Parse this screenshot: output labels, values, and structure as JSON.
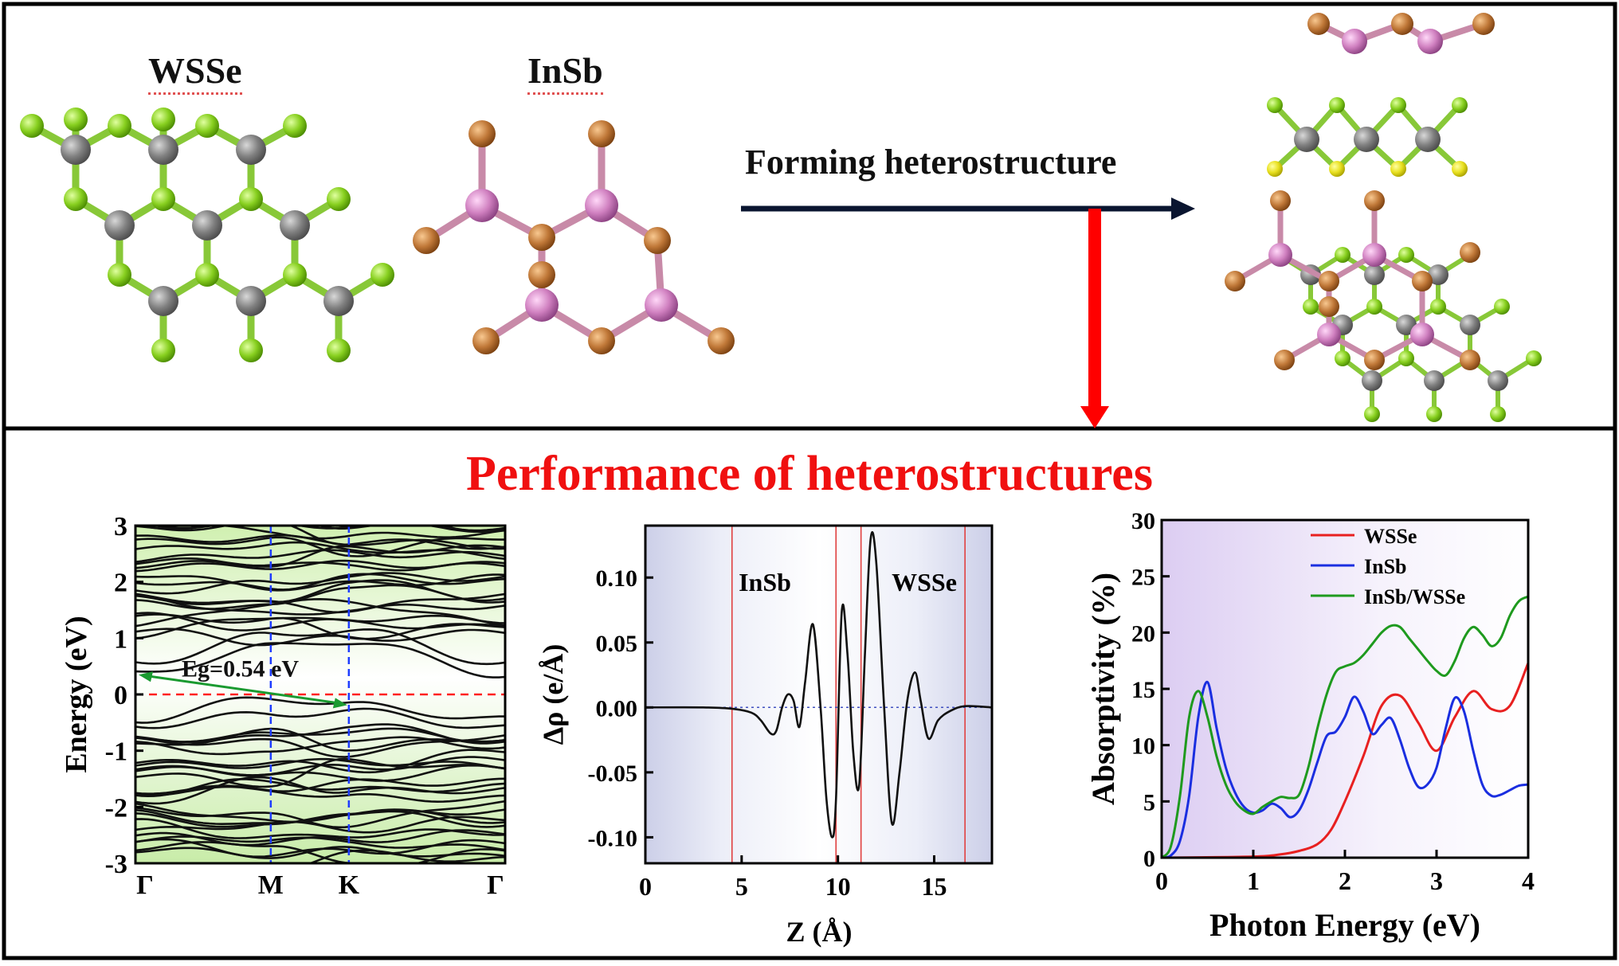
{
  "top_panel": {
    "wsse_label": "WSSe",
    "insb_label": "InSb",
    "arrow_label": "Forming heterostructure"
  },
  "bottom_panel": {
    "title": "Performance of heterostructures"
  },
  "colors": {
    "W": "#808080",
    "S": "#e8e020",
    "Se": "#88d020",
    "In": "#d080c0",
    "Sb": "#c07838",
    "bond_WSSe": "#88c838",
    "bond_InSb": "#c88aa8",
    "arrow_black": "#0a1530",
    "arrow_red": "#ff0000"
  },
  "band_chart": {
    "type": "line",
    "ylabel": "Energy (eV)",
    "ylim": [
      -3,
      3
    ],
    "yticks": [
      "-3",
      "-2",
      "-1",
      "0",
      "1",
      "2",
      "3"
    ],
    "kpoints": [
      "Γ",
      "M",
      "K",
      "Γ"
    ],
    "kpoint_positions": [
      0,
      1,
      1.577,
      2.732
    ],
    "fermi_level": 0,
    "gap_label": "Eg=0.54 eV",
    "cbm": {
      "k": 0,
      "e": 0.35
    },
    "vbm": {
      "k": 1.577,
      "e": -0.19
    }
  },
  "charge_chart": {
    "type": "line",
    "xlabel": "Z (Å)",
    "ylabel": "Δρ (e/Å)",
    "xlim": [
      0,
      18
    ],
    "ylim": [
      -0.12,
      0.14
    ],
    "xticks": [
      "0",
      "5",
      "10",
      "15"
    ],
    "yticks": [
      "-0.10",
      "-0.05",
      "0.00",
      "0.05",
      "0.10"
    ],
    "region_labels": [
      "InSb",
      "WSSe"
    ],
    "boundaries": [
      4.5,
      9.9,
      11.2,
      16.6
    ],
    "x": [
      0,
      3,
      4.5,
      5.5,
      6.0,
      6.5,
      6.8,
      7.1,
      7.4,
      7.7,
      8.0,
      8.3,
      8.7,
      9.1,
      9.4,
      9.7,
      9.9,
      10.2,
      10.5,
      10.8,
      11.1,
      11.4,
      11.7,
      12.0,
      12.4,
      12.8,
      13.2,
      13.6,
      14.0,
      14.3,
      14.7,
      15.2,
      15.8,
      16.6,
      18
    ],
    "y": [
      0,
      0,
      -0.001,
      -0.004,
      -0.01,
      -0.02,
      -0.018,
      0.0,
      0.01,
      0.005,
      -0.015,
      0.02,
      0.064,
      0.0,
      -0.07,
      -0.1,
      -0.07,
      0.074,
      0.04,
      -0.035,
      -0.06,
      0.04,
      0.13,
      0.11,
      0.0,
      -0.089,
      -0.05,
      0.005,
      0.027,
      0.005,
      -0.024,
      -0.01,
      -0.003,
      0.001,
      0
    ]
  },
  "absorption_chart": {
    "type": "line",
    "xlabel": "Photon Energy (eV)",
    "ylabel": "Absorptivity (%)",
    "xlim": [
      0,
      4
    ],
    "ylim": [
      0,
      30
    ],
    "xticks": [
      "0",
      "1",
      "2",
      "3",
      "4"
    ],
    "yticks": [
      "0",
      "5",
      "10",
      "15",
      "20",
      "25",
      "30"
    ],
    "series": [
      {
        "name": "WSSe",
        "color": "#e82020",
        "x": [
          0,
          1.0,
          1.3,
          1.5,
          1.7,
          1.85,
          2.0,
          2.2,
          2.4,
          2.6,
          2.8,
          3.0,
          3.2,
          3.4,
          3.6,
          3.8,
          4.0
        ],
        "y": [
          0,
          0.1,
          0.3,
          0.6,
          1.2,
          2.5,
          5.0,
          9.0,
          13.5,
          14.4,
          12.0,
          9.5,
          12.5,
          14.8,
          13.2,
          13.5,
          17.3
        ]
      },
      {
        "name": "InSb",
        "color": "#1a2ee0",
        "x": [
          0,
          0.1,
          0.2,
          0.3,
          0.4,
          0.5,
          0.6,
          0.7,
          0.8,
          0.9,
          1.0,
          1.1,
          1.2,
          1.3,
          1.4,
          1.5,
          1.6,
          1.7,
          1.8,
          1.9,
          2.0,
          2.1,
          2.2,
          2.3,
          2.4,
          2.5,
          2.6,
          2.7,
          2.8,
          2.9,
          3.0,
          3.1,
          3.2,
          3.3,
          3.4,
          3.5,
          3.6,
          3.7,
          3.8,
          3.9,
          4.0
        ],
        "y": [
          0,
          0.2,
          1.5,
          5.5,
          12.5,
          15.6,
          11.5,
          8.0,
          5.8,
          4.5,
          4.0,
          4.2,
          4.8,
          4.4,
          3.6,
          4.2,
          6.0,
          8.5,
          10.8,
          11.2,
          12.5,
          14.3,
          13.0,
          11.0,
          11.8,
          12.4,
          10.5,
          8.0,
          6.3,
          6.5,
          8.0,
          11.5,
          14.2,
          13.0,
          9.5,
          6.5,
          5.5,
          5.6,
          6.0,
          6.4,
          6.5
        ]
      },
      {
        "name": "InSb/WSSe",
        "color": "#1e9a1e",
        "x": [
          0,
          0.1,
          0.2,
          0.3,
          0.4,
          0.5,
          0.6,
          0.7,
          0.8,
          0.9,
          1.0,
          1.1,
          1.2,
          1.3,
          1.4,
          1.5,
          1.6,
          1.7,
          1.8,
          1.9,
          2.0,
          2.1,
          2.2,
          2.3,
          2.4,
          2.5,
          2.6,
          2.7,
          2.8,
          2.9,
          3.0,
          3.1,
          3.2,
          3.3,
          3.4,
          3.5,
          3.6,
          3.7,
          3.8,
          3.9,
          4.0
        ],
        "y": [
          0,
          1.0,
          5.5,
          12.5,
          14.8,
          12.5,
          9.0,
          6.5,
          5.0,
          4.2,
          3.9,
          4.5,
          5.0,
          5.4,
          5.3,
          5.6,
          8.0,
          11.5,
          14.5,
          16.5,
          17.0,
          17.3,
          18.0,
          19.0,
          20.0,
          20.6,
          20.5,
          19.5,
          18.5,
          17.5,
          16.6,
          16.2,
          17.5,
          19.5,
          20.5,
          19.8,
          18.8,
          19.5,
          21.5,
          22.8,
          23.2
        ]
      }
    ]
  }
}
